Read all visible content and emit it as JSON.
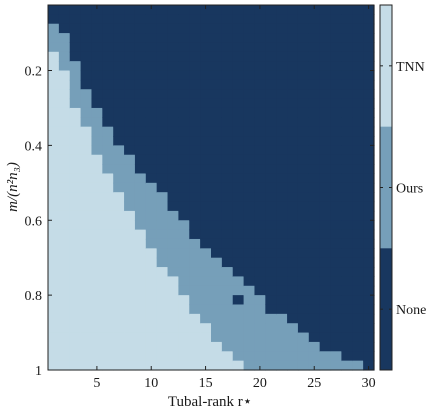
{
  "chart_data": {
    "type": "heatmap",
    "title": "",
    "xlabel": "Tubal-rank r⋆",
    "ylabel": "m/(n²n₃)",
    "xlim": [
      0.5,
      30.5
    ],
    "ylim": [
      0.025,
      1.0
    ],
    "y_axis_direction": "top-to-bottom",
    "x_ticks": [
      5,
      10,
      15,
      20,
      25,
      30
    ],
    "y_ticks": [
      0.2,
      0.4,
      0.6,
      0.8,
      1
    ],
    "y_tick_labels": [
      "0.2",
      "0.4",
      "0.6",
      "0.8",
      "1"
    ],
    "grid": false,
    "x_values": [
      1,
      2,
      3,
      4,
      5,
      6,
      7,
      8,
      9,
      10,
      11,
      12,
      13,
      14,
      15,
      16,
      17,
      18,
      19,
      20,
      21,
      22,
      23,
      24,
      25,
      26,
      27,
      28,
      29,
      30
    ],
    "y_step": 0.025,
    "categories": [
      {
        "label": "None",
        "value": 0,
        "color": "#18375f"
      },
      {
        "label": "Ours",
        "value": 1,
        "color": "#769fb9"
      },
      {
        "label": "TNN",
        "value": 2,
        "color": "#c5dce7"
      }
    ],
    "colorbar_tick_labels": [
      "TNN",
      "Ours",
      "None"
    ],
    "colorbar_position": "right",
    "tnn_success_upper_ratio": [
      0.15,
      0.2,
      0.3,
      0.35,
      0.43,
      0.48,
      0.53,
      0.58,
      0.62,
      0.67,
      0.72,
      0.76,
      0.8,
      0.84,
      0.88,
      0.92,
      0.95,
      0.97,
      0.99,
      1.0,
      1.05,
      1.05,
      1.05,
      1.05,
      1.05,
      1.05,
      1.05,
      1.05,
      1.05,
      1.05
    ],
    "ours_success_upper_ratio": [
      0.07,
      0.1,
      0.18,
      0.24,
      0.3,
      0.35,
      0.39,
      0.43,
      0.47,
      0.51,
      0.54,
      0.58,
      0.61,
      0.64,
      0.67,
      0.7,
      0.73,
      0.76,
      0.78,
      0.81,
      0.84,
      0.86,
      0.88,
      0.9,
      0.92,
      0.94,
      0.96,
      0.97,
      0.98,
      1.0
    ],
    "cell_overrides": [
      {
        "x": 11,
        "y": 0.525,
        "value": 0
      },
      {
        "x": 11,
        "y": 0.55,
        "value": 1
      },
      {
        "x": 18,
        "y": 0.825,
        "value": 0
      }
    ],
    "notes_rule": "cell value = 2 if y >= tnn boundary, 1 if y >= ours boundary, else 0"
  }
}
